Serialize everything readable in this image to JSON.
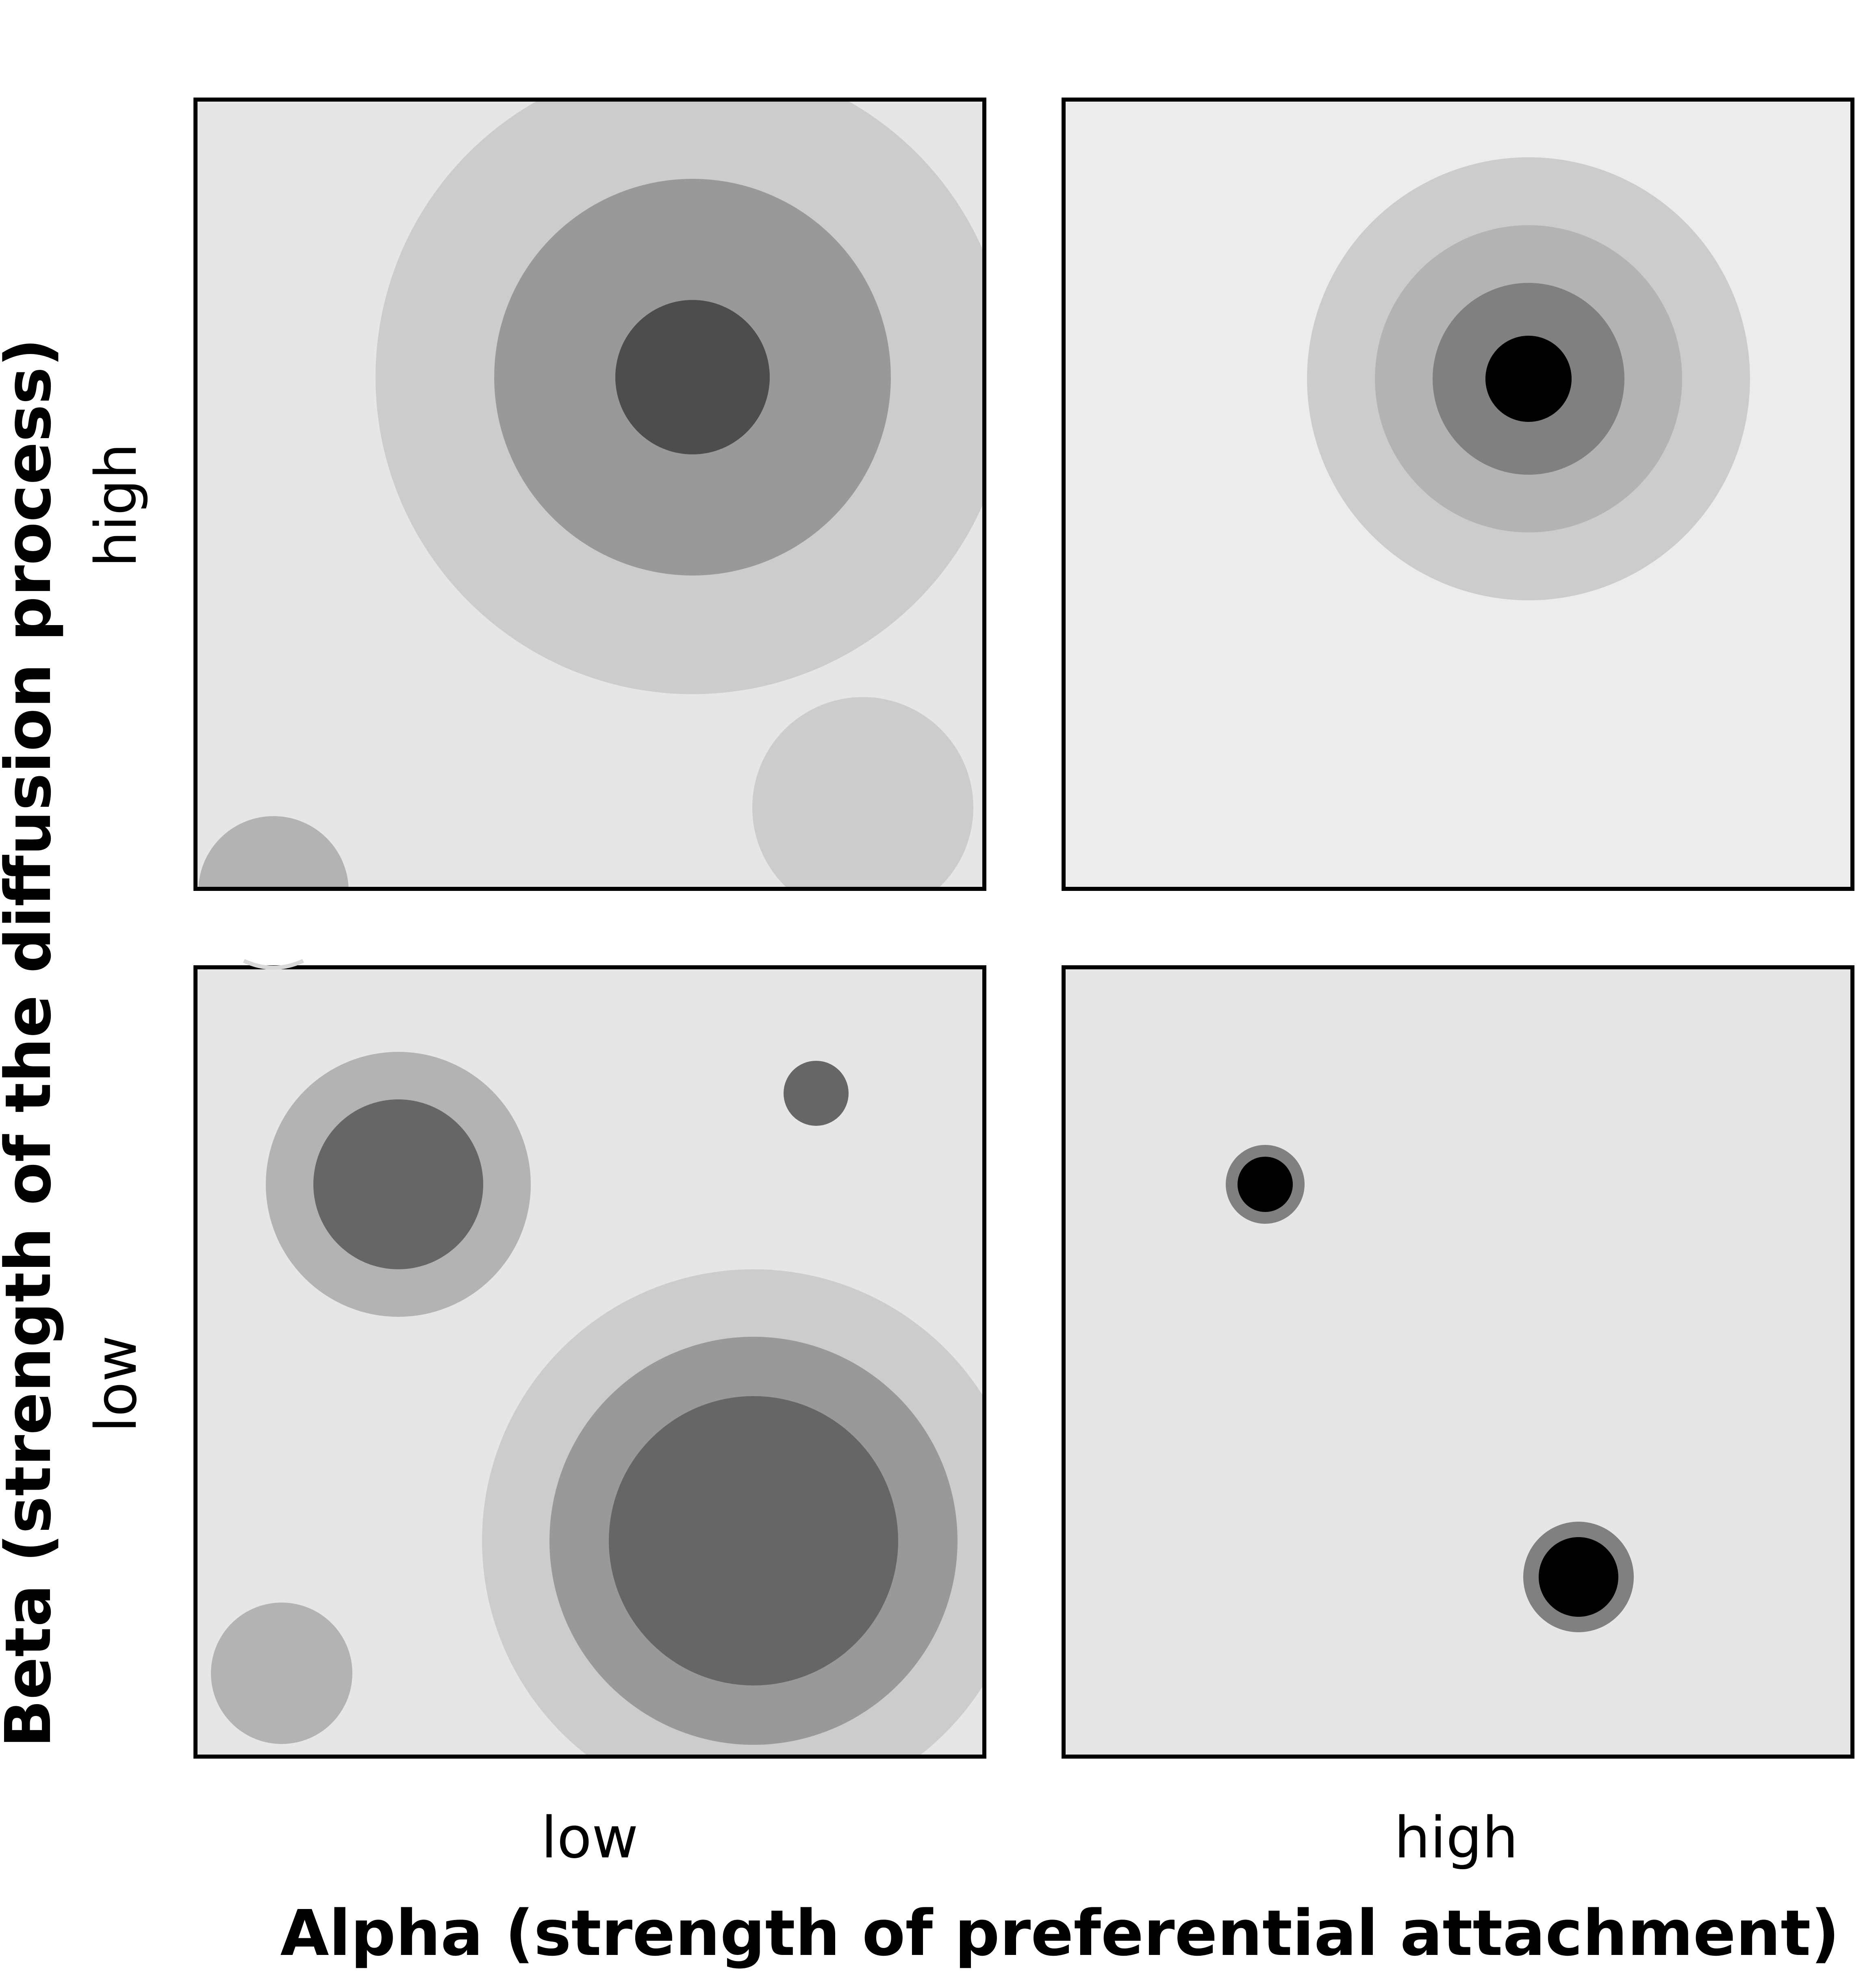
{
  "figure": {
    "x_axis": {
      "title": "Alpha (strength of preferential attachment)",
      "low_label": "low",
      "high_label": "high"
    },
    "y_axis": {
      "title": "Beta (strength of the diffusion process)",
      "high_label": "high",
      "low_label": "low"
    }
  },
  "panels": [
    {
      "id": "alpha-low-beta-high",
      "alpha": "low",
      "beta": "high",
      "background": "#e6e6e6"
    },
    {
      "id": "alpha-high-beta-high",
      "alpha": "high",
      "beta": "high",
      "background": "#ececec"
    },
    {
      "id": "alpha-low-beta-low",
      "alpha": "low",
      "beta": "low",
      "background": "#e6e6e6"
    },
    {
      "id": "alpha-high-beta-low",
      "alpha": "high",
      "beta": "low",
      "background": "#e6e6e6"
    }
  ],
  "colors": {
    "level_1": "#cccccc",
    "level_2": "#b3b3b3",
    "level_3": "#999999",
    "level_4": "#808080",
    "level_5": "#666666",
    "level_6": "#4d4d4d",
    "peak": "#000000",
    "border": "#000000"
  }
}
